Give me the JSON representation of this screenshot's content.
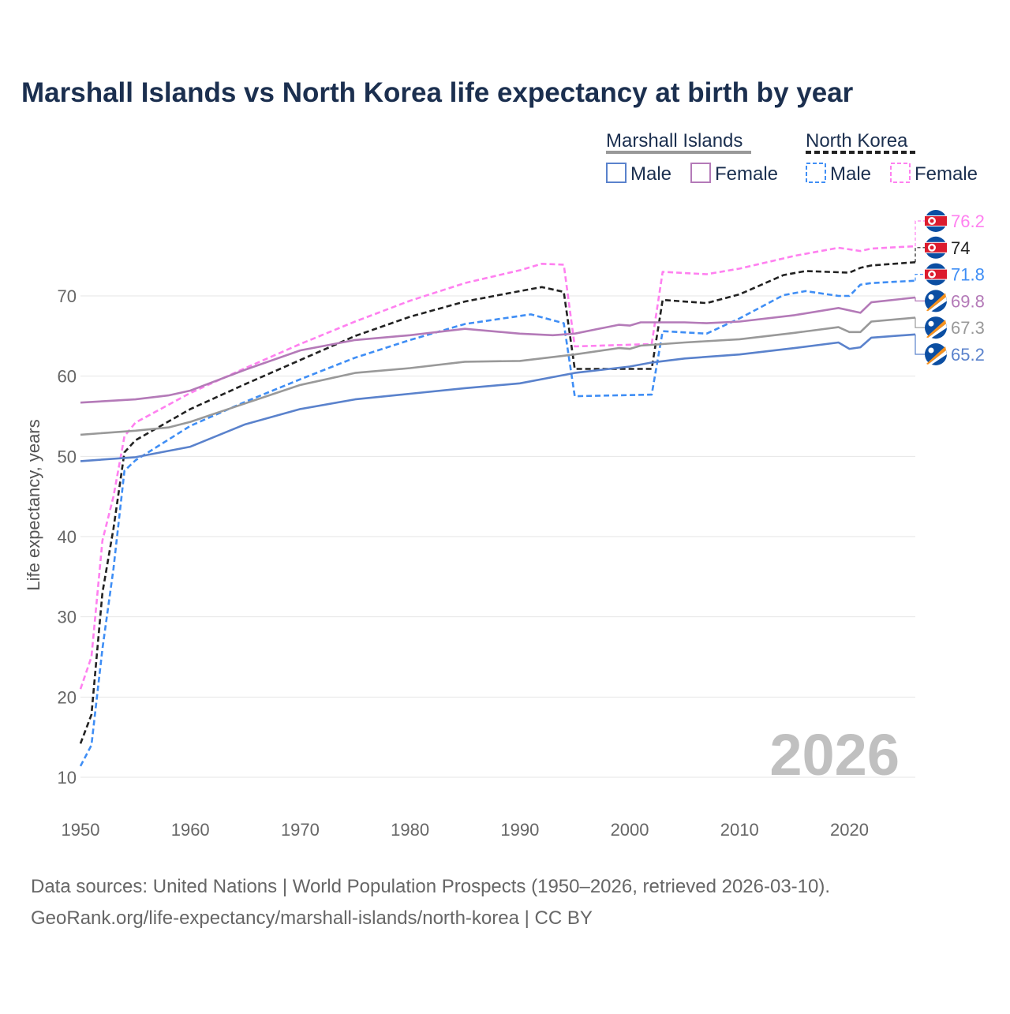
{
  "chart_data": {
    "type": "line",
    "title": "Marshall Islands vs North Korea life expectancy at birth by year",
    "xlabel": "",
    "ylabel": "Life expectancy, years",
    "xlim": [
      1950,
      2026
    ],
    "ylim": [
      10,
      78
    ],
    "x_ticks": [
      1950,
      1960,
      1970,
      1980,
      1990,
      2000,
      2010,
      2020
    ],
    "y_ticks": [
      10,
      20,
      30,
      40,
      50,
      60,
      70
    ],
    "grid": true,
    "watermark_year": "2026",
    "legend": {
      "groups": [
        {
          "name": "Marshall Islands",
          "items": [
            "Male",
            "Female"
          ]
        },
        {
          "name": "North Korea",
          "items": [
            "Male",
            "Female"
          ]
        }
      ],
      "placement": "top-right"
    },
    "series": [
      {
        "name": "North Korea Female",
        "color": "#ff80f0",
        "dashed": true,
        "end_label": "76.2",
        "flag": "north-korea",
        "points": [
          [
            1950,
            21
          ],
          [
            1951,
            25
          ],
          [
            1952,
            39.5
          ],
          [
            1953,
            45
          ],
          [
            1954,
            52.5
          ],
          [
            1955,
            54.2
          ],
          [
            1960,
            57.9
          ],
          [
            1965,
            61
          ],
          [
            1970,
            64
          ],
          [
            1975,
            66.8
          ],
          [
            1980,
            69.4
          ],
          [
            1985,
            71.6
          ],
          [
            1990,
            73.2
          ],
          [
            1992,
            74
          ],
          [
            1994,
            73.9
          ],
          [
            1995,
            63.7
          ],
          [
            2002,
            64
          ],
          [
            2003,
            73
          ],
          [
            2007,
            72.7
          ],
          [
            2010,
            73.4
          ],
          [
            2015,
            75
          ],
          [
            2019,
            76
          ],
          [
            2020,
            75.8
          ],
          [
            2021,
            75.6
          ],
          [
            2022,
            75.9
          ],
          [
            2026,
            76.2
          ]
        ]
      },
      {
        "name": "North Korea",
        "color": "#222222",
        "dashed": true,
        "end_label": "74",
        "flag": "north-korea",
        "points": [
          [
            1950,
            14.2
          ],
          [
            1951,
            17.8
          ],
          [
            1952,
            33
          ],
          [
            1953,
            41
          ],
          [
            1954,
            50.5
          ],
          [
            1955,
            52
          ],
          [
            1960,
            55.9
          ],
          [
            1965,
            59
          ],
          [
            1970,
            62
          ],
          [
            1975,
            65
          ],
          [
            1980,
            67.4
          ],
          [
            1985,
            69.3
          ],
          [
            1990,
            70.6
          ],
          [
            1992,
            71.1
          ],
          [
            1994,
            70.5
          ],
          [
            1995,
            60.9
          ],
          [
            2002,
            60.9
          ],
          [
            2003,
            69.5
          ],
          [
            2007,
            69.1
          ],
          [
            2010,
            70.2
          ],
          [
            2014,
            72.6
          ],
          [
            2016,
            73.1
          ],
          [
            2020,
            72.9
          ],
          [
            2021,
            73.5
          ],
          [
            2022,
            73.8
          ],
          [
            2026,
            74.2
          ]
        ]
      },
      {
        "name": "North Korea Male",
        "color": "#3f8ef5",
        "dashed": true,
        "end_label": "71.8",
        "flag": "north-korea",
        "points": [
          [
            1950,
            11.4
          ],
          [
            1951,
            14
          ],
          [
            1952,
            26
          ],
          [
            1953,
            36
          ],
          [
            1954,
            48.2
          ],
          [
            1955,
            49.5
          ],
          [
            1960,
            53.8
          ],
          [
            1965,
            56.8
          ],
          [
            1970,
            59.6
          ],
          [
            1975,
            62.3
          ],
          [
            1980,
            64.5
          ],
          [
            1985,
            66.5
          ],
          [
            1990,
            67.5
          ],
          [
            1991,
            67.7
          ],
          [
            1994,
            66.6
          ],
          [
            1995,
            57.5
          ],
          [
            2002,
            57.7
          ],
          [
            2003,
            65.6
          ],
          [
            2007,
            65.3
          ],
          [
            2010,
            67.2
          ],
          [
            2014,
            70.1
          ],
          [
            2016,
            70.6
          ],
          [
            2019,
            70
          ],
          [
            2020,
            70
          ],
          [
            2021,
            71.4
          ],
          [
            2022,
            71.6
          ],
          [
            2026,
            71.9
          ]
        ]
      },
      {
        "name": "Marshall Islands Female",
        "color": "#b47ab8",
        "dashed": false,
        "end_label": "69.8",
        "flag": "marshall-islands",
        "points": [
          [
            1950,
            56.7
          ],
          [
            1955,
            57.1
          ],
          [
            1958,
            57.6
          ],
          [
            1960,
            58.2
          ],
          [
            1965,
            60.8
          ],
          [
            1970,
            63.2
          ],
          [
            1975,
            64.5
          ],
          [
            1980,
            65.1
          ],
          [
            1985,
            65.9
          ],
          [
            1990,
            65.3
          ],
          [
            1993,
            65.1
          ],
          [
            1995,
            65.3
          ],
          [
            1999,
            66.4
          ],
          [
            2000,
            66.3
          ],
          [
            2001,
            66.7
          ],
          [
            2005,
            66.7
          ],
          [
            2007,
            66.6
          ],
          [
            2010,
            66.8
          ],
          [
            2015,
            67.6
          ],
          [
            2019,
            68.5
          ],
          [
            2021,
            67.9
          ],
          [
            2022,
            69.2
          ],
          [
            2026,
            69.8
          ]
        ]
      },
      {
        "name": "Marshall Islands",
        "color": "#999999",
        "dashed": false,
        "end_label": "67.3",
        "flag": "marshall-islands",
        "points": [
          [
            1950,
            52.7
          ],
          [
            1955,
            53.2
          ],
          [
            1958,
            53.6
          ],
          [
            1960,
            54.3
          ],
          [
            1965,
            56.6
          ],
          [
            1970,
            58.9
          ],
          [
            1975,
            60.4
          ],
          [
            1980,
            61
          ],
          [
            1985,
            61.8
          ],
          [
            1990,
            61.9
          ],
          [
            1995,
            62.7
          ],
          [
            1999,
            63.5
          ],
          [
            2000,
            63.4
          ],
          [
            2001,
            63.8
          ],
          [
            2005,
            64.2
          ],
          [
            2010,
            64.6
          ],
          [
            2015,
            65.4
          ],
          [
            2019,
            66.1
          ],
          [
            2020,
            65.5
          ],
          [
            2021,
            65.5
          ],
          [
            2022,
            66.8
          ],
          [
            2026,
            67.3
          ]
        ]
      },
      {
        "name": "Marshall Islands Male",
        "color": "#5a82cc",
        "dashed": false,
        "end_label": "65.2",
        "flag": "marshall-islands",
        "points": [
          [
            1950,
            49.4
          ],
          [
            1955,
            49.9
          ],
          [
            1960,
            51.2
          ],
          [
            1965,
            54
          ],
          [
            1970,
            55.9
          ],
          [
            1975,
            57.1
          ],
          [
            1980,
            57.8
          ],
          [
            1985,
            58.5
          ],
          [
            1990,
            59.1
          ],
          [
            1995,
            60.4
          ],
          [
            2000,
            61.2
          ],
          [
            2002,
            61.7
          ],
          [
            2005,
            62.2
          ],
          [
            2010,
            62.7
          ],
          [
            2015,
            63.5
          ],
          [
            2019,
            64.2
          ],
          [
            2020,
            63.4
          ],
          [
            2021,
            63.6
          ],
          [
            2022,
            64.8
          ],
          [
            2026,
            65.2
          ]
        ]
      }
    ]
  },
  "footer": {
    "line1": "Data sources: United Nations | World Population Prospects (1950–2026, retrieved 2026-03-10).",
    "line2": "GeoRank.org/life-expectancy/marshall-islands/north-korea | CC BY"
  }
}
